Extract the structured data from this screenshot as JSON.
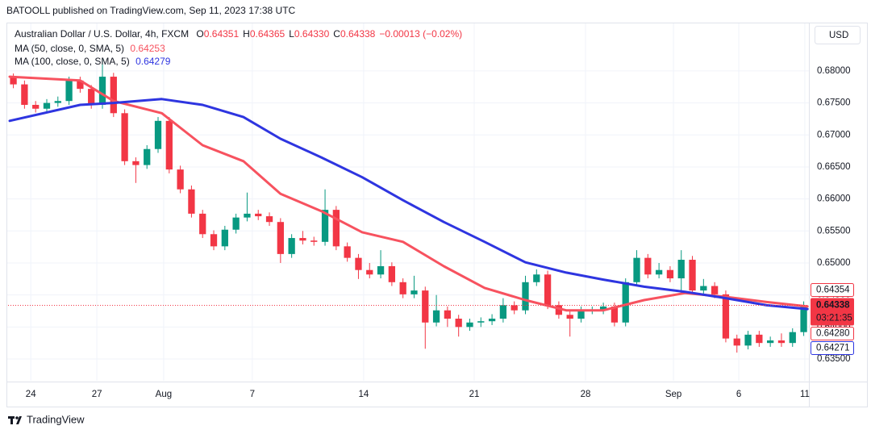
{
  "header": {
    "publisher": "BATOOLL published on TradingView.com, Sep 11, 2023 17:38 UTC"
  },
  "brand": "TradingView",
  "currency": "USD",
  "chart_data": {
    "type": "candlestick",
    "title": "Australian Dollar / U.S. Dollar, 4h, FXCM",
    "ohlc": [
      {
        "name": "O",
        "value": "0.64351"
      },
      {
        "name": "H",
        "value": "0.64365"
      },
      {
        "name": "L",
        "value": "0.64330"
      },
      {
        "name": "C",
        "value": "0.64338"
      }
    ],
    "change": "−0.00013 (−0.02%)",
    "colors": {
      "up": "#089981",
      "down": "#f23645"
    },
    "candles": {
      "x": [
        1,
        4,
        7,
        10,
        13,
        16,
        19,
        22,
        25,
        28,
        31,
        34,
        37,
        40,
        43,
        46,
        49,
        52,
        55,
        58,
        61,
        64,
        67,
        70,
        73,
        76,
        79,
        82,
        85,
        88,
        91,
        94,
        97,
        100,
        103,
        106,
        109,
        112,
        115,
        118,
        121,
        124,
        127,
        130,
        133,
        136,
        139,
        142,
        145,
        148,
        151,
        154,
        157,
        160,
        163,
        166,
        169,
        172,
        175,
        178,
        181,
        184,
        187,
        190,
        193,
        196,
        199,
        202,
        205,
        208,
        211,
        214
      ],
      "open": [
        0.679,
        0.6779,
        0.6747,
        0.6741,
        0.675,
        0.6753,
        0.6785,
        0.6772,
        0.6747,
        0.6791,
        0.6734,
        0.6659,
        0.6653,
        0.6678,
        0.6722,
        0.6646,
        0.6615,
        0.6577,
        0.6545,
        0.6526,
        0.6552,
        0.6571,
        0.6577,
        0.6573,
        0.6564,
        0.6514,
        0.6539,
        0.6535,
        0.6533,
        0.6583,
        0.6526,
        0.6508,
        0.6489,
        0.6482,
        0.6495,
        0.647,
        0.6451,
        0.6457,
        0.6407,
        0.6426,
        0.6413,
        0.64,
        0.6407,
        0.6409,
        0.6413,
        0.6434,
        0.6426,
        0.647,
        0.6482,
        0.6434,
        0.6419,
        0.6413,
        0.6426,
        0.6426,
        0.6432,
        0.6407,
        0.647,
        0.6508,
        0.6482,
        0.6489,
        0.6476,
        0.6505,
        0.6457,
        0.6464,
        0.6451,
        0.6382,
        0.6371,
        0.6388,
        0.6375,
        0.6379,
        0.6375,
        0.6392
      ],
      "high": [
        0.6796,
        0.6785,
        0.6753,
        0.6756,
        0.676,
        0.6791,
        0.6791,
        0.6778,
        0.682,
        0.6797,
        0.674,
        0.6665,
        0.6684,
        0.6728,
        0.6728,
        0.6652,
        0.6621,
        0.6583,
        0.6551,
        0.6558,
        0.6577,
        0.661,
        0.6583,
        0.6579,
        0.657,
        0.6545,
        0.655,
        0.6541,
        0.6615,
        0.6589,
        0.6532,
        0.6514,
        0.65,
        0.652,
        0.6501,
        0.6476,
        0.648,
        0.6463,
        0.645,
        0.6432,
        0.6419,
        0.6413,
        0.6415,
        0.642,
        0.6445,
        0.644,
        0.648,
        0.649,
        0.6488,
        0.644,
        0.6425,
        0.6432,
        0.6432,
        0.6438,
        0.6438,
        0.6476,
        0.652,
        0.6514,
        0.65,
        0.6495,
        0.652,
        0.6511,
        0.6475,
        0.647,
        0.6457,
        0.6388,
        0.6394,
        0.6394,
        0.6385,
        0.639,
        0.6398,
        0.644
      ],
      "low": [
        0.6773,
        0.6741,
        0.6735,
        0.6735,
        0.6744,
        0.6747,
        0.6766,
        0.6741,
        0.6741,
        0.6728,
        0.6653,
        0.6625,
        0.6647,
        0.6672,
        0.664,
        0.6609,
        0.6571,
        0.6539,
        0.652,
        0.652,
        0.6546,
        0.6565,
        0.6567,
        0.6558,
        0.65,
        0.6508,
        0.6529,
        0.6527,
        0.6527,
        0.652,
        0.6502,
        0.6475,
        0.6476,
        0.6476,
        0.6464,
        0.6445,
        0.6445,
        0.6366,
        0.6401,
        0.64,
        0.6385,
        0.6394,
        0.64,
        0.6403,
        0.6407,
        0.642,
        0.642,
        0.6464,
        0.6428,
        0.6413,
        0.6385,
        0.6407,
        0.642,
        0.642,
        0.6401,
        0.6401,
        0.6464,
        0.6476,
        0.6476,
        0.647,
        0.6451,
        0.6451,
        0.6451,
        0.6445,
        0.6376,
        0.636,
        0.6365,
        0.6369,
        0.6369,
        0.6369,
        0.6369,
        0.6386
      ],
      "close": [
        0.6779,
        0.6747,
        0.6741,
        0.675,
        0.6753,
        0.6785,
        0.6772,
        0.6747,
        0.6791,
        0.6734,
        0.6659,
        0.6653,
        0.6678,
        0.6722,
        0.6646,
        0.6615,
        0.6577,
        0.6545,
        0.6526,
        0.6552,
        0.6571,
        0.6577,
        0.6573,
        0.6564,
        0.6514,
        0.6539,
        0.6535,
        0.6533,
        0.6583,
        0.6526,
        0.6508,
        0.6489,
        0.6482,
        0.6495,
        0.647,
        0.6451,
        0.6457,
        0.6407,
        0.6426,
        0.6413,
        0.64,
        0.6407,
        0.6409,
        0.6413,
        0.6434,
        0.6426,
        0.647,
        0.6482,
        0.6434,
        0.6419,
        0.6413,
        0.6426,
        0.6426,
        0.6432,
        0.6407,
        0.647,
        0.6508,
        0.6482,
        0.6489,
        0.6476,
        0.6505,
        0.6457,
        0.6464,
        0.6451,
        0.6382,
        0.6371,
        0.6388,
        0.6375,
        0.6379,
        0.6375,
        0.6392,
        0.64338
      ]
    },
    "series": [
      {
        "name": "MA (50, close, 0, SMA, 5)",
        "last": "0.64253",
        "color": "#f7525f",
        "x": [
          0,
          19,
          28,
          41,
          52,
          63,
          73,
          84,
          95,
          106,
          117,
          128,
          139,
          150,
          160,
          171,
          182,
          193,
          204,
          215
        ],
        "values": [
          0.6791,
          0.6785,
          0.6753,
          0.6734,
          0.6684,
          0.6659,
          0.6608,
          0.6581,
          0.6548,
          0.6533,
          0.6495,
          0.6461,
          0.6442,
          0.6426,
          0.6426,
          0.6442,
          0.6453,
          0.6447,
          0.6439,
          0.6432
        ]
      },
      {
        "name": "MA (100, close, 0, SMA, 5)",
        "last": "0.64279",
        "color": "#2e35e0",
        "x": [
          0,
          19,
          28,
          41,
          52,
          63,
          73,
          84,
          95,
          106,
          117,
          128,
          139,
          150,
          160,
          171,
          182,
          193,
          204,
          215
        ],
        "values": [
          0.6722,
          0.6747,
          0.675,
          0.6756,
          0.6747,
          0.6728,
          0.6694,
          0.6665,
          0.6634,
          0.6598,
          0.6564,
          0.6533,
          0.6501,
          0.6485,
          0.6474,
          0.6463,
          0.6455,
          0.6445,
          0.6434,
          0.6428
        ]
      }
    ],
    "xlim": [
      -0.43,
      215.4
    ],
    "xticks": [
      {
        "value": 5.7,
        "label": "24"
      },
      {
        "value": 23.5,
        "label": "27"
      },
      {
        "value": 41.5,
        "label": "Aug"
      },
      {
        "value": 65.4,
        "label": "7"
      },
      {
        "value": 95.4,
        "label": "14"
      },
      {
        "value": 125.2,
        "label": "21"
      },
      {
        "value": 155.2,
        "label": "28"
      },
      {
        "value": 178.9,
        "label": "Sep"
      },
      {
        "value": 196.5,
        "label": "6"
      },
      {
        "value": 214.3,
        "label": "11"
      }
    ],
    "ylim": [
      0.6316,
      0.6873
    ],
    "yticks": [
      {
        "value": 0.635,
        "label": "0.63500"
      },
      {
        "value": 0.64,
        "label": "0.64000"
      },
      {
        "value": 0.645,
        "label": "0.64500"
      },
      {
        "value": 0.65,
        "label": "0.65000"
      },
      {
        "value": 0.655,
        "label": "0.65500"
      },
      {
        "value": 0.66,
        "label": "0.66000"
      },
      {
        "value": 0.665,
        "label": "0.66500"
      },
      {
        "value": 0.67,
        "label": "0.67000"
      },
      {
        "value": 0.675,
        "label": "0.67500"
      },
      {
        "value": 0.68,
        "label": "0.68000"
      }
    ],
    "grid": true,
    "current": {
      "value": 0.64338,
      "label": "0.64338",
      "countdown": "03:21:35",
      "color": "#f23645"
    },
    "price_labels": [
      {
        "value": 0.64354,
        "label": "0.64354",
        "color": "#f23645",
        "place": "above"
      },
      {
        "value": 0.6428,
        "label": "0.64280",
        "color": "#f23645",
        "place": "below"
      },
      {
        "value": 0.64271,
        "label": "0.64271",
        "color": "#2e35e0",
        "place": "below"
      }
    ]
  }
}
